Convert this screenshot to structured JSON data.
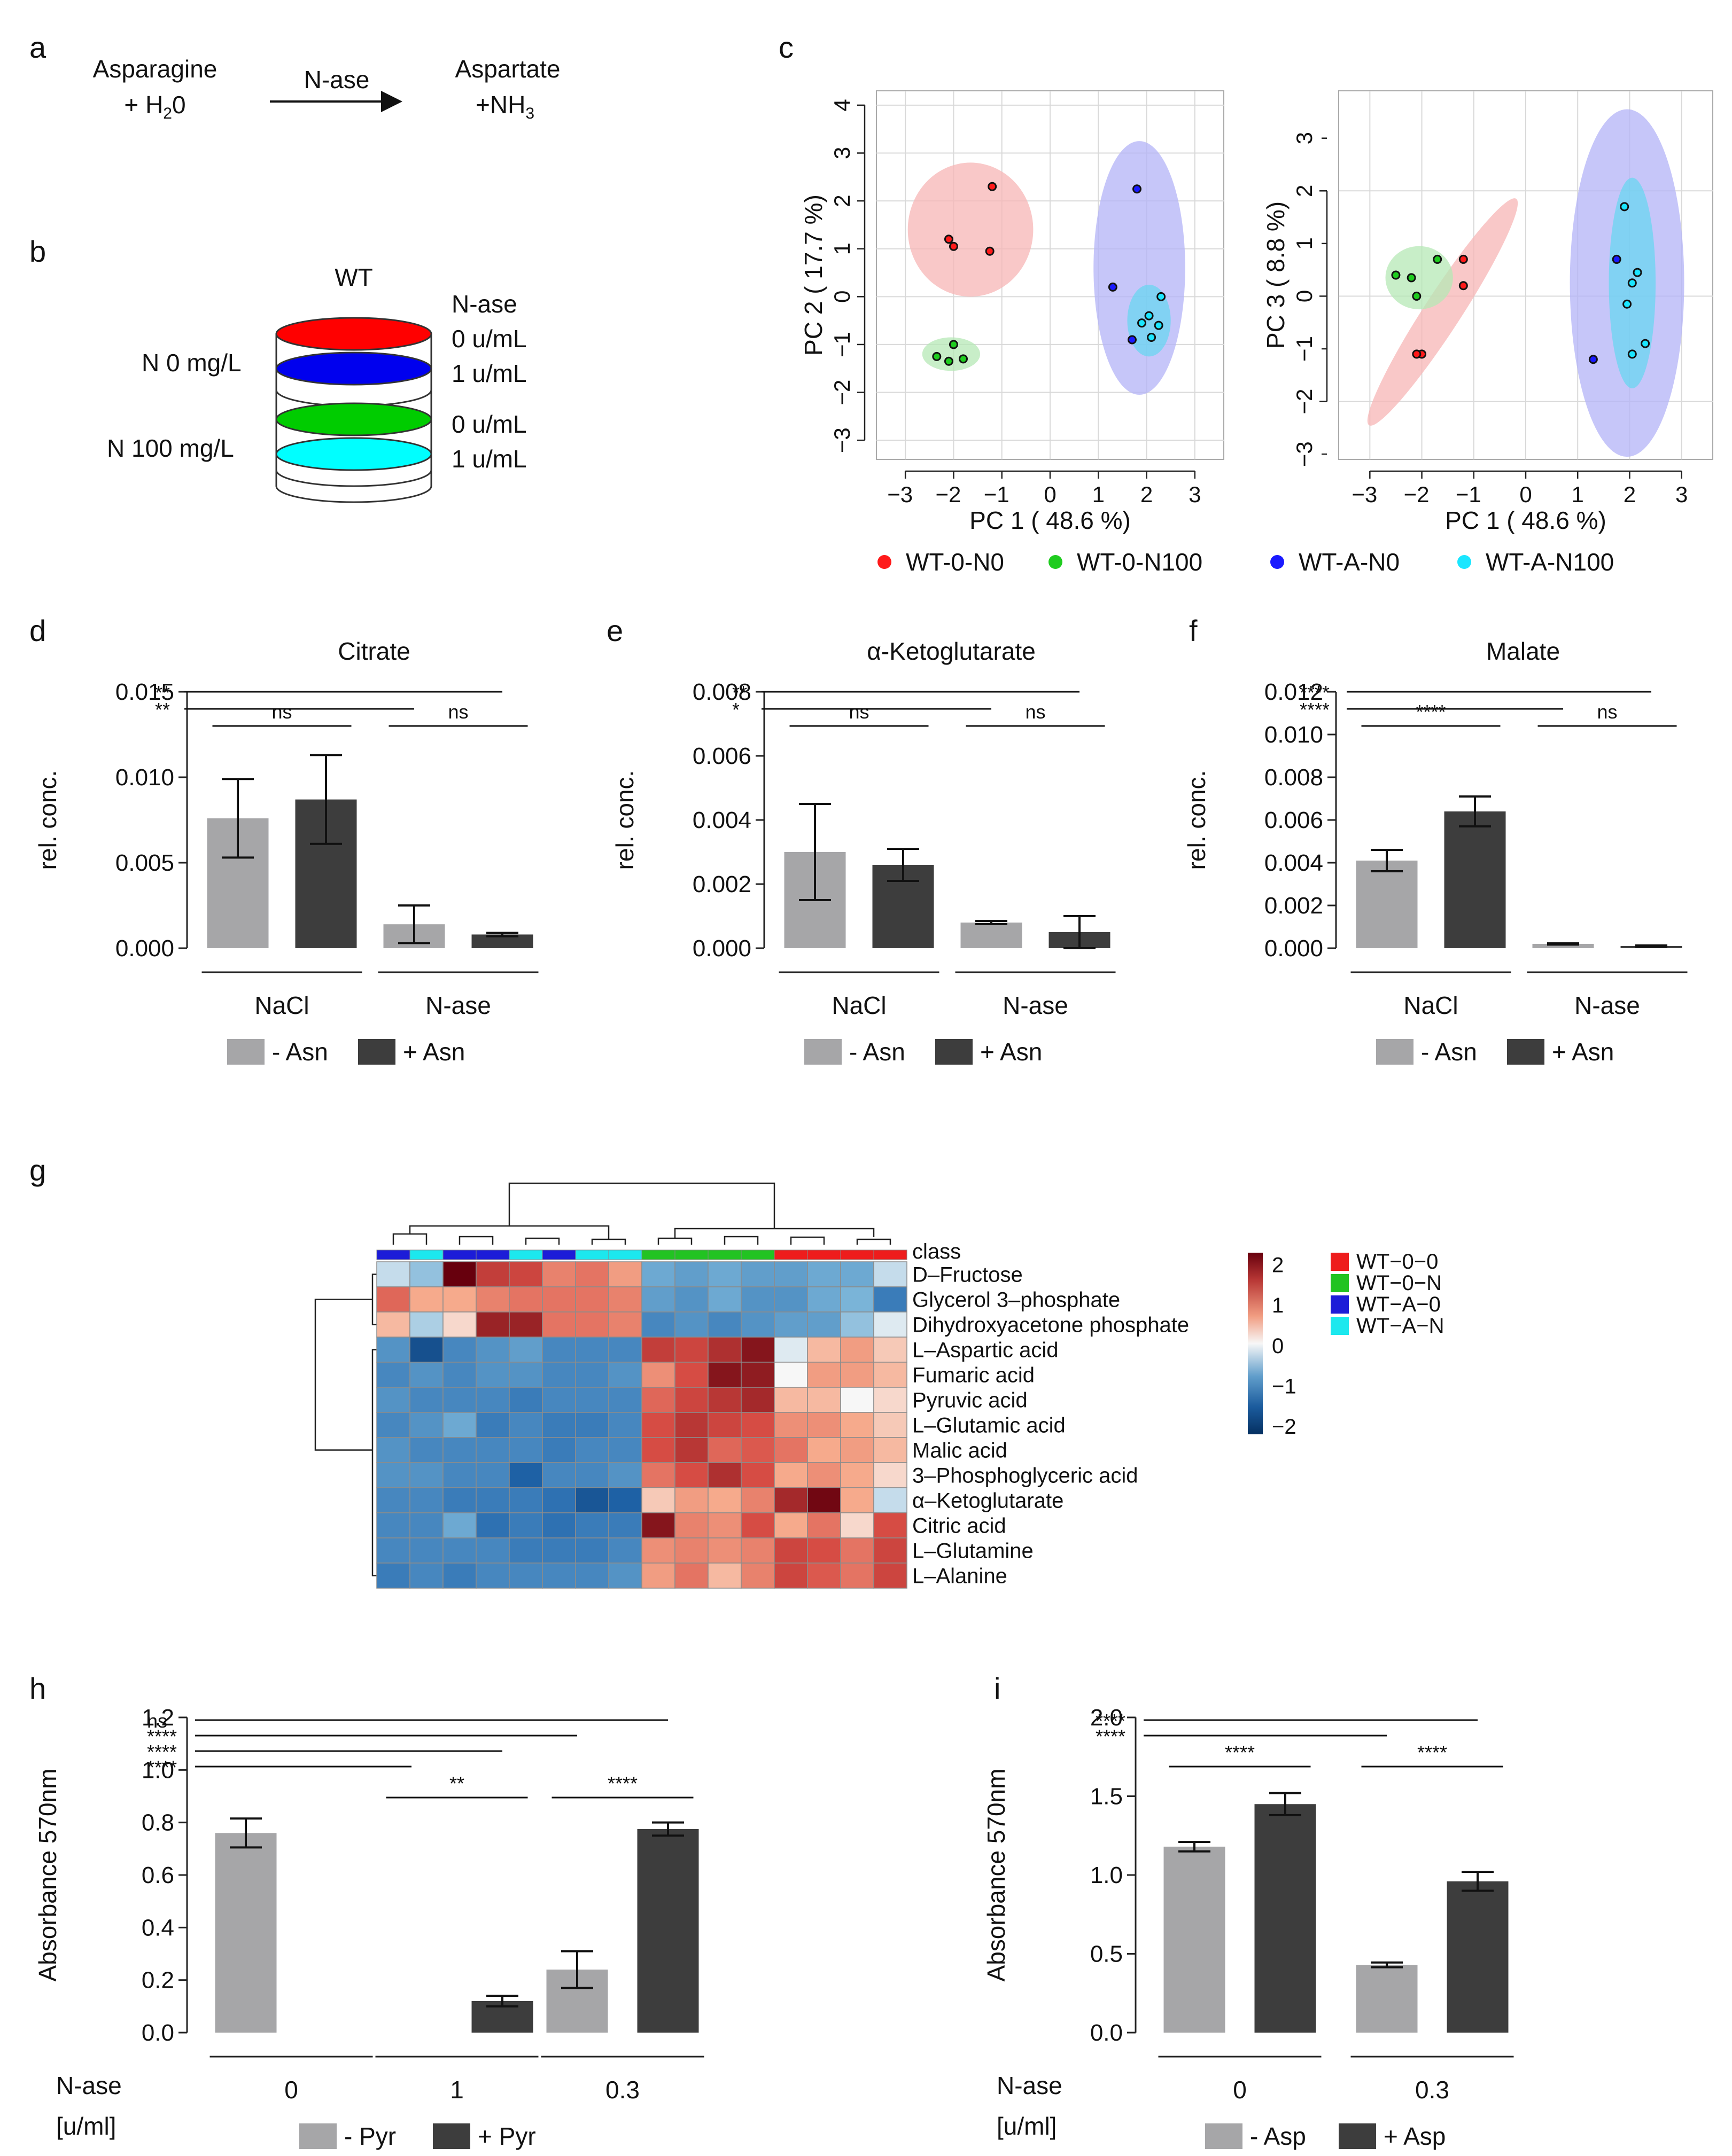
{
  "panels": {
    "a": {
      "label": "a",
      "substrate_line1": "Asparagine",
      "substrate_line2": "+ H",
      "substrate_sub": "2",
      "substrate_tail": "0",
      "enzyme": "N-ase",
      "product_line1": "Aspartate",
      "product_line2": "+NH",
      "product_sub": "3"
    },
    "b": {
      "label": "b",
      "strain": "WT",
      "enzyme_header": "N-ase",
      "layers": [
        {
          "color": "#ff0000",
          "condition": "N 0 mg/L",
          "dose": "0 u/mL"
        },
        {
          "color": "#0000ee",
          "condition": "",
          "dose": "1 u/mL"
        },
        {
          "color": "#00cc00",
          "condition": "N 100 mg/L",
          "dose": "0 u/mL"
        },
        {
          "color": "#00ffff",
          "condition": "",
          "dose": "1 u/mL"
        }
      ]
    },
    "c": {
      "label": "c"
    },
    "d": {
      "label": "d"
    },
    "e": {
      "label": "e"
    },
    "f": {
      "label": "f"
    },
    "g": {
      "label": "g"
    },
    "h": {
      "label": "h"
    },
    "i": {
      "label": "i"
    }
  },
  "legend_c": [
    {
      "label": "WT-0-N0",
      "color": "#ff1a1a"
    },
    {
      "label": "WT-0-N100",
      "color": "#1fcc1f"
    },
    {
      "label": "WT-A-N0",
      "color": "#1a1aff"
    },
    {
      "label": "WT-A-N100",
      "color": "#1ae6ff"
    }
  ],
  "chart_data": [
    {
      "id": "c_left",
      "type": "scatter",
      "xlabel": "PC 1 ( 48.6 %)",
      "ylabel": "PC 2 ( 17.7 %)",
      "xlim": [
        -3.6,
        3.6
      ],
      "ylim": [
        -3.4,
        4.3
      ],
      "xticks": [
        -3,
        -2,
        -1,
        0,
        1,
        2,
        3
      ],
      "yticks": [
        -3,
        -2,
        -1,
        0,
        1,
        2,
        3,
        4
      ],
      "series": [
        {
          "name": "WT-0-N0",
          "color": "#ff1a1a",
          "fill": "#f7b6b6",
          "points": [
            [
              -2.1,
              1.2
            ],
            [
              -2.0,
              1.05
            ],
            [
              -1.2,
              2.3
            ],
            [
              -1.25,
              0.95
            ]
          ],
          "ellipse": {
            "cx": -1.65,
            "cy": 1.4,
            "rx": 1.3,
            "ry": 1.4,
            "angle": 0
          }
        },
        {
          "name": "WT-0-N100",
          "color": "#1fcc1f",
          "fill": "#b6e8b6",
          "points": [
            [
              -2.0,
              -1.0
            ],
            [
              -2.35,
              -1.25
            ],
            [
              -2.1,
              -1.35
            ],
            [
              -1.8,
              -1.3
            ]
          ],
          "ellipse": {
            "cx": -2.05,
            "cy": -1.2,
            "rx": 0.6,
            "ry": 0.35,
            "angle": 0
          }
        },
        {
          "name": "WT-A-N0",
          "color": "#1a1aff",
          "fill": "#b3b3f7",
          "points": [
            [
              1.8,
              2.25
            ],
            [
              1.3,
              0.2
            ],
            [
              1.7,
              -0.9
            ]
          ],
          "ellipse": {
            "cx": 1.85,
            "cy": 0.6,
            "rx": 0.95,
            "ry": 2.65,
            "angle": 0
          }
        },
        {
          "name": "WT-A-N100",
          "color": "#1ae6ff",
          "fill": "#6ad6f0",
          "points": [
            [
              2.3,
              0.0
            ],
            [
              2.05,
              -0.4
            ],
            [
              1.9,
              -0.55
            ],
            [
              2.1,
              -0.85
            ],
            [
              2.25,
              -0.6
            ]
          ],
          "ellipse": {
            "cx": 2.05,
            "cy": -0.5,
            "rx": 0.45,
            "ry": 0.75,
            "angle": 0
          }
        }
      ]
    },
    {
      "id": "c_right",
      "type": "scatter",
      "xlabel": "PC 1 ( 48.6 %)",
      "ylabel": "PC 3 ( 8.8 %)",
      "xlim": [
        -3.6,
        3.6
      ],
      "ylim": [
        -3.1,
        3.9
      ],
      "xticks": [
        -3,
        -2,
        -1,
        0,
        1,
        2,
        3
      ],
      "yticks": [
        -2,
        0,
        2
      ],
      "yminor": [
        -3,
        -1,
        1,
        3
      ],
      "series": [
        {
          "name": "WT-0-N0",
          "color": "#ff1a1a",
          "fill": "#f7b6b6",
          "points": [
            [
              -1.2,
              0.7
            ],
            [
              -1.2,
              0.2
            ],
            [
              -2.0,
              -1.1
            ],
            [
              -2.1,
              -1.1
            ]
          ],
          "ellipse": {
            "cx": -1.6,
            "cy": -0.3,
            "rx": 2.6,
            "ry": 0.35,
            "angle": -57
          }
        },
        {
          "name": "WT-0-N100",
          "color": "#1fcc1f",
          "fill": "#b6e8b6",
          "points": [
            [
              -2.5,
              0.4
            ],
            [
              -1.7,
              0.7
            ],
            [
              -2.2,
              0.35
            ],
            [
              -2.1,
              0.0
            ]
          ],
          "ellipse": {
            "cx": -2.05,
            "cy": 0.35,
            "rx": 0.65,
            "ry": 0.6,
            "angle": 0
          }
        },
        {
          "name": "WT-A-N0",
          "color": "#1a1aff",
          "fill": "#b3b3f7",
          "points": [
            [
              1.3,
              -1.2
            ],
            [
              1.75,
              0.7
            ]
          ],
          "ellipse": {
            "cx": 1.95,
            "cy": 0.25,
            "rx": 1.1,
            "ry": 3.3,
            "angle": 0
          }
        },
        {
          "name": "WT-A-N100",
          "color": "#1ae6ff",
          "fill": "#6ad6f0",
          "points": [
            [
              1.9,
              1.7
            ],
            [
              2.15,
              0.45
            ],
            [
              2.05,
              0.25
            ],
            [
              1.95,
              -0.15
            ],
            [
              2.3,
              -0.9
            ],
            [
              2.05,
              -1.1
            ]
          ],
          "ellipse": {
            "cx": 2.05,
            "cy": 0.25,
            "rx": 0.45,
            "ry": 2.0,
            "angle": 0
          }
        }
      ]
    },
    {
      "id": "d",
      "type": "bar",
      "title": "Citrate",
      "ylabel": "rel. conc.",
      "ylim": [
        0,
        0.015
      ],
      "yticks": [
        "0.000",
        "0.005",
        "0.010",
        "0.015"
      ],
      "groups": [
        "NaCl",
        "N-ase"
      ],
      "series": [
        {
          "name": "- Asn",
          "color": "#a6a6a8",
          "values": [
            0.0076,
            0.0014
          ],
          "errors": [
            0.0023,
            0.0011
          ]
        },
        {
          "name": "+ Asn",
          "color": "#3d3d3d",
          "values": [
            0.0087,
            0.0008
          ],
          "errors": [
            0.0026,
            0.0001
          ]
        }
      ],
      "brackets": [
        {
          "from": 0,
          "to": 3,
          "label": "**",
          "row": 0
        },
        {
          "from": 0,
          "to": 2,
          "label": "**",
          "row": 1
        },
        {
          "from": 0,
          "to": 1,
          "label": "ns",
          "row": 2
        },
        {
          "from": 2,
          "to": 3,
          "label": "ns",
          "row": 2
        }
      ],
      "legend": [
        "- Asn",
        "+ Asn"
      ]
    },
    {
      "id": "e",
      "type": "bar",
      "title": "α-Ketoglutarate",
      "ylabel": "rel. conc.",
      "ylim": [
        0,
        0.008
      ],
      "yticks": [
        "0.000",
        "0.002",
        "0.004",
        "0.006",
        "0.008"
      ],
      "groups": [
        "NaCl",
        "N-ase"
      ],
      "series": [
        {
          "name": "- Asn",
          "color": "#a6a6a8",
          "values": [
            0.003,
            0.0008
          ],
          "errors": [
            0.0015,
            5e-05
          ]
        },
        {
          "name": "+ Asn",
          "color": "#3d3d3d",
          "values": [
            0.0026,
            0.0005
          ],
          "errors": [
            0.0005,
            0.0005
          ]
        }
      ],
      "brackets": [
        {
          "from": 0,
          "to": 3,
          "label": "**",
          "row": 0
        },
        {
          "from": 0,
          "to": 2,
          "label": "*",
          "row": 1
        },
        {
          "from": 0,
          "to": 1,
          "label": "ns",
          "row": 2
        },
        {
          "from": 2,
          "to": 3,
          "label": "ns",
          "row": 2
        }
      ],
      "legend": [
        "- Asn",
        "+ Asn"
      ]
    },
    {
      "id": "f",
      "type": "bar",
      "title": "Malate",
      "ylabel": "rel. conc.",
      "ylim": [
        0,
        0.012
      ],
      "yticks": [
        "0.000",
        "0.002",
        "0.004",
        "0.006",
        "0.008",
        "0.010",
        "0.012"
      ],
      "groups": [
        "NaCl",
        "N-ase"
      ],
      "series": [
        {
          "name": "- Asn",
          "color": "#a6a6a8",
          "values": [
            0.0041,
            0.0002
          ],
          "errors": [
            0.0005,
            3e-05
          ]
        },
        {
          "name": "+ Asn",
          "color": "#3d3d3d",
          "values": [
            0.0064,
            0.0001
          ],
          "errors": [
            0.0007,
            3e-05
          ]
        }
      ],
      "brackets": [
        {
          "from": 0,
          "to": 3,
          "label": "****",
          "row": 0
        },
        {
          "from": 0,
          "to": 2,
          "label": "****",
          "row": 1
        },
        {
          "from": 0,
          "to": 1,
          "label": "****",
          "row": 2
        },
        {
          "from": 2,
          "to": 3,
          "label": "ns",
          "row": 2
        }
      ],
      "legend": [
        "- Asn",
        "+ Asn"
      ]
    },
    {
      "id": "g",
      "type": "heatmap",
      "rows": [
        "D–Fructose",
        "Glycerol 3–phosphate",
        "Dihydroxyacetone phosphate",
        "L–Aspartic acid",
        "Fumaric acid",
        "Pyruvic acid",
        "L–Glutamic acid",
        "Malic acid",
        "3–Phosphoglyceric acid",
        "α–Ketoglutarate",
        "Citric acid",
        "L–Glutamine",
        "L–Alanine"
      ],
      "class_label": "class",
      "column_classes": [
        "WT-A-0",
        "WT-A-N",
        "WT-A-0",
        "WT-A-0",
        "WT-A-N",
        "WT-A-0",
        "WT-A-N",
        "WT-A-N",
        "WT-0-N",
        "WT-0-N",
        "WT-0-N",
        "WT-0-N",
        "WT-0-0",
        "WT-0-0",
        "WT-0-0",
        "WT-0-0"
      ],
      "values": [
        [
          -0.2,
          -0.4,
          2.3,
          1.4,
          1.3,
          0.8,
          0.9,
          0.6,
          -0.6,
          -0.7,
          -0.6,
          -0.7,
          -0.7,
          -0.6,
          -0.6,
          -0.2
        ],
        [
          1.0,
          0.5,
          0.5,
          0.8,
          0.9,
          0.9,
          0.9,
          0.8,
          -0.7,
          -0.8,
          -0.6,
          -0.8,
          -0.8,
          -0.6,
          -0.5,
          -1.0
        ],
        [
          0.4,
          -0.3,
          0.2,
          1.8,
          1.8,
          0.9,
          0.9,
          0.8,
          -0.9,
          -0.8,
          -0.9,
          -0.8,
          -0.7,
          -0.7,
          -0.4,
          -0.1
        ],
        [
          -0.8,
          -1.6,
          -0.9,
          -0.8,
          -0.7,
          -0.9,
          -0.9,
          -0.9,
          1.4,
          1.3,
          1.6,
          2.0,
          -0.1,
          0.4,
          0.6,
          0.3
        ],
        [
          -0.9,
          -0.8,
          -0.9,
          -0.8,
          -0.8,
          -0.9,
          -0.9,
          -0.8,
          0.7,
          1.2,
          2.0,
          1.9,
          0.0,
          0.6,
          0.6,
          0.4
        ],
        [
          -0.8,
          -0.9,
          -0.9,
          -0.9,
          -1.0,
          -0.9,
          -0.9,
          -0.9,
          1.0,
          1.3,
          1.5,
          1.7,
          0.4,
          0.4,
          0.0,
          0.2
        ],
        [
          -0.9,
          -0.8,
          -0.6,
          -1.0,
          -0.9,
          -1.0,
          -1.0,
          -0.9,
          1.2,
          1.5,
          1.3,
          1.2,
          0.7,
          0.7,
          0.5,
          0.3
        ],
        [
          -0.8,
          -0.9,
          -0.9,
          -0.9,
          -0.9,
          -1.0,
          -0.9,
          -0.9,
          1.2,
          1.5,
          1.0,
          1.1,
          0.9,
          0.5,
          0.6,
          0.4
        ],
        [
          -0.8,
          -0.8,
          -0.9,
          -0.9,
          -1.3,
          -0.9,
          -0.9,
          -0.8,
          0.9,
          1.2,
          1.6,
          1.2,
          0.5,
          0.7,
          0.5,
          0.2
        ],
        [
          -0.9,
          -0.9,
          -1.0,
          -1.0,
          -1.0,
          -1.1,
          -1.5,
          -1.3,
          0.3,
          0.6,
          0.5,
          0.8,
          1.7,
          2.2,
          0.5,
          -0.2
        ],
        [
          -0.9,
          -0.9,
          -0.6,
          -1.1,
          -1.0,
          -1.1,
          -1.0,
          -1.0,
          2.0,
          0.8,
          0.7,
          1.2,
          0.5,
          0.9,
          0.2,
          1.2
        ],
        [
          -0.9,
          -0.9,
          -0.9,
          -0.9,
          -1.0,
          -1.0,
          -1.0,
          -0.9,
          0.7,
          0.8,
          0.7,
          0.8,
          1.3,
          1.2,
          0.9,
          1.3
        ],
        [
          -1.0,
          -0.9,
          -1.0,
          -0.9,
          -0.9,
          -0.9,
          -0.9,
          -0.8,
          0.6,
          0.9,
          0.4,
          0.8,
          1.3,
          1.1,
          0.9,
          1.3
        ]
      ],
      "colorscale_ticks": [
        "2",
        "1",
        "0",
        "−1",
        "−2"
      ],
      "class_legend": [
        {
          "label": "WT−0−0",
          "color": "#ee1c1c"
        },
        {
          "label": "WT−0−N",
          "color": "#22c322"
        },
        {
          "label": "WT−A−0",
          "color": "#1c1cd8"
        },
        {
          "label": "WT−A−N",
          "color": "#1ce8ee"
        }
      ]
    },
    {
      "id": "h",
      "type": "bar",
      "ylabel": "Absorbance 570nm",
      "ylim": [
        0,
        1.2
      ],
      "yticks": [
        "0.0",
        "0.2",
        "0.4",
        "0.6",
        "0.8",
        "1.0",
        "1.2"
      ],
      "groups": [
        "0",
        "1",
        "0.3"
      ],
      "xprefix_line1": "N-ase",
      "xprefix_line2": "[u/ml]",
      "series": [
        {
          "name": "- Pyr",
          "color": "#a6a6a8",
          "values": [
            0.76,
            0.0,
            0.24
          ],
          "errors": [
            0.055,
            0.0,
            0.07
          ]
        },
        {
          "name": "+ Pyr",
          "color": "#3d3d3d",
          "values": [
            null,
            0.12,
            0.775
          ],
          "errors": [
            null,
            0.02,
            0.025
          ]
        }
      ],
      "brackets": [
        {
          "from": 0,
          "to": 5,
          "label": "ns",
          "row": 0
        },
        {
          "from": 0,
          "to": 4,
          "label": "****",
          "row": 1
        },
        {
          "from": 0,
          "to": 3,
          "label": "****",
          "row": 2
        },
        {
          "from": 0,
          "to": 2,
          "label": "****",
          "row": 3
        },
        {
          "from": 2,
          "to": 3,
          "label": "**",
          "row": 5
        },
        {
          "from": 4,
          "to": 5,
          "label": "****",
          "row": 5
        }
      ],
      "legend": [
        "- Pyr",
        "+ Pyr"
      ]
    },
    {
      "id": "i",
      "type": "bar",
      "ylabel": "Absorbance 570nm",
      "ylim": [
        0,
        2.0
      ],
      "yticks": [
        "0.0",
        "0.5",
        "1.0",
        "1.5",
        "2.0"
      ],
      "groups": [
        "0",
        "0.3"
      ],
      "xprefix_line1": "N-ase",
      "xprefix_line2": "[u/ml]",
      "series": [
        {
          "name": "- Asp",
          "color": "#a6a6a8",
          "values": [
            1.18,
            0.43
          ],
          "errors": [
            0.03,
            0.015
          ]
        },
        {
          "name": "+ Asp",
          "color": "#3d3d3d",
          "values": [
            1.45,
            0.96
          ],
          "errors": [
            0.07,
            0.06
          ]
        }
      ],
      "brackets": [
        {
          "from": 0,
          "to": 3,
          "label": "****",
          "row": 0
        },
        {
          "from": 0,
          "to": 2,
          "label": "****",
          "row": 1
        },
        {
          "from": 0,
          "to": 1,
          "label": "****",
          "row": 3
        },
        {
          "from": 2,
          "to": 3,
          "label": "****",
          "row": 3
        }
      ],
      "legend": [
        "- Asp",
        "+ Asp"
      ]
    }
  ]
}
